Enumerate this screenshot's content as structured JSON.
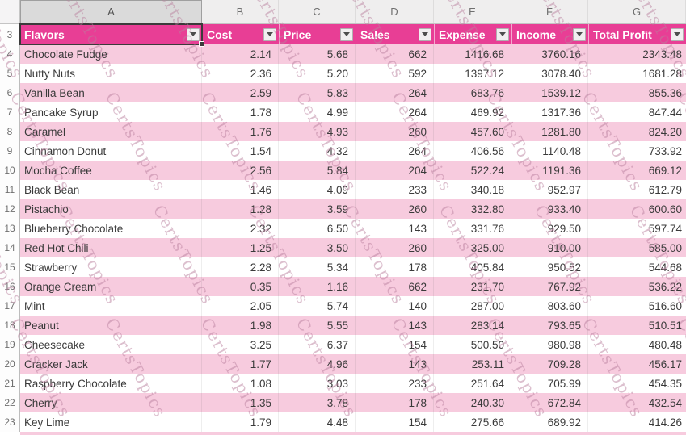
{
  "watermark": {
    "text": "CertsTopics"
  },
  "colors": {
    "header_bg": "#e83e95",
    "band_bg": "#f7cbde",
    "selection_border": "#3b3b3b",
    "watermark": "rgba(186,128,158,0.5)"
  },
  "columns": {
    "letters": [
      "A",
      "B",
      "C",
      "D",
      "E",
      "F",
      "G"
    ]
  },
  "table": {
    "header": {
      "row_number": "3",
      "cells": [
        "Flavors",
        "Cost",
        "Price",
        "Sales",
        "Expense",
        "Income",
        "Total Profit"
      ]
    },
    "rows": [
      {
        "row_number": "4",
        "cells": [
          "Chocolate Fudge",
          "2.14",
          "5.68",
          "662",
          "1416.68",
          "3760.16",
          "2343.48"
        ]
      },
      {
        "row_number": "5",
        "cells": [
          "Nutty Nuts",
          "2.36",
          "5.20",
          "592",
          "1397.12",
          "3078.40",
          "1681.28"
        ]
      },
      {
        "row_number": "6",
        "cells": [
          "Vanilla Bean",
          "2.59",
          "5.83",
          "264",
          "683.76",
          "1539.12",
          "855.36"
        ]
      },
      {
        "row_number": "7",
        "cells": [
          "Pancake Syrup",
          "1.78",
          "4.99",
          "264",
          "469.92",
          "1317.36",
          "847.44"
        ]
      },
      {
        "row_number": "8",
        "cells": [
          "Caramel",
          "1.76",
          "4.93",
          "260",
          "457.60",
          "1281.80",
          "824.20"
        ]
      },
      {
        "row_number": "9",
        "cells": [
          "Cinnamon Donut",
          "1.54",
          "4.32",
          "264",
          "406.56",
          "1140.48",
          "733.92"
        ]
      },
      {
        "row_number": "10",
        "cells": [
          "Mocha Coffee",
          "2.56",
          "5.84",
          "204",
          "522.24",
          "1191.36",
          "669.12"
        ]
      },
      {
        "row_number": "11",
        "cells": [
          "Black Bean",
          "1.46",
          "4.09",
          "233",
          "340.18",
          "952.97",
          "612.79"
        ]
      },
      {
        "row_number": "12",
        "cells": [
          "Pistachio",
          "1.28",
          "3.59",
          "260",
          "332.80",
          "933.40",
          "600.60"
        ]
      },
      {
        "row_number": "13",
        "cells": [
          "Blueberry Chocolate",
          "2.32",
          "6.50",
          "143",
          "331.76",
          "929.50",
          "597.74"
        ]
      },
      {
        "row_number": "14",
        "cells": [
          "Red Hot Chili",
          "1.25",
          "3.50",
          "260",
          "325.00",
          "910.00",
          "585.00"
        ]
      },
      {
        "row_number": "15",
        "cells": [
          "Strawberry",
          "2.28",
          "5.34",
          "178",
          "405.84",
          "950.52",
          "544.68"
        ]
      },
      {
        "row_number": "16",
        "cells": [
          "Orange Cream",
          "0.35",
          "1.16",
          "662",
          "231.70",
          "767.92",
          "536.22"
        ]
      },
      {
        "row_number": "17",
        "cells": [
          "Mint",
          "2.05",
          "5.74",
          "140",
          "287.00",
          "803.60",
          "516.60"
        ]
      },
      {
        "row_number": "18",
        "cells": [
          "Peanut",
          "1.98",
          "5.55",
          "143",
          "283.14",
          "793.65",
          "510.51"
        ]
      },
      {
        "row_number": "19",
        "cells": [
          "Cheesecake",
          "3.25",
          "6.37",
          "154",
          "500.50",
          "980.98",
          "480.48"
        ]
      },
      {
        "row_number": "20",
        "cells": [
          "Cracker Jack",
          "1.77",
          "4.96",
          "143",
          "253.11",
          "709.28",
          "456.17"
        ]
      },
      {
        "row_number": "21",
        "cells": [
          "Raspberry Chocolate",
          "1.08",
          "3.03",
          "233",
          "251.64",
          "705.99",
          "454.35"
        ]
      },
      {
        "row_number": "22",
        "cells": [
          "Cherry",
          "1.35",
          "3.78",
          "178",
          "240.30",
          "672.84",
          "432.54"
        ]
      },
      {
        "row_number": "23",
        "cells": [
          "Key Lime",
          "1.79",
          "4.48",
          "154",
          "275.66",
          "689.92",
          "414.26"
        ]
      }
    ]
  }
}
